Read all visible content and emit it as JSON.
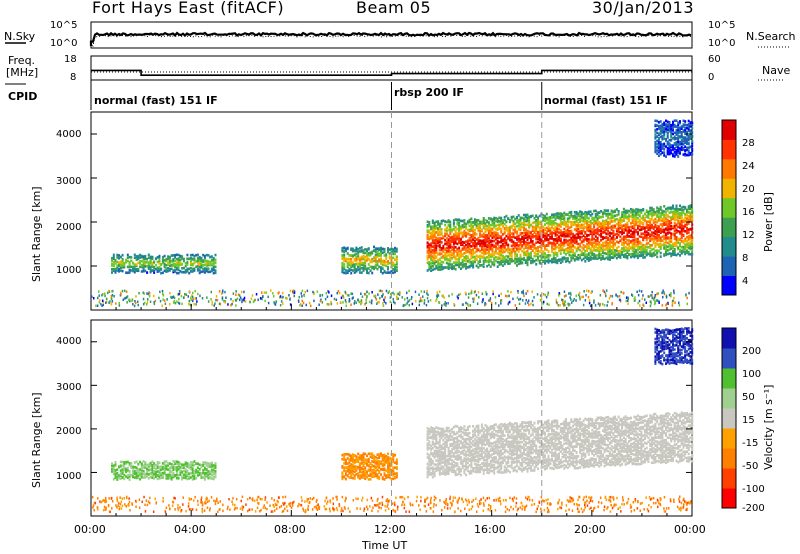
{
  "header": {
    "station": "Fort Hays East (fitACF)",
    "beam": "Beam 05",
    "date": "30/Jan/2013"
  },
  "noise_panel": {
    "left_label": "N.Sky",
    "left_ticks": [
      "10^5",
      "10^0"
    ],
    "right_label": "N.Search",
    "right_ticks": [
      "10^5",
      "10^0"
    ]
  },
  "freq_panel": {
    "left_label_1": "Freq.",
    "left_label_2": "[MHz]",
    "left_ticks": [
      "18",
      "8"
    ],
    "right_label": "Nave",
    "right_ticks": [
      "60",
      "0"
    ],
    "cpid_label": "CPID"
  },
  "cpid_segments": [
    {
      "label": "normal (fast) 151 IF",
      "start_hour": 0
    },
    {
      "label": "rbsp 200 IF",
      "start_hour": 12
    },
    {
      "label": "normal (fast) 151 IF",
      "start_hour": 18
    }
  ],
  "x_axis": {
    "label": "Time UT",
    "ticks": [
      "00:00",
      "04:00",
      "08:00",
      "12:00",
      "16:00",
      "20:00",
      "00:00"
    ]
  },
  "power_panel": {
    "ylabel": "Slant Range [km]",
    "y_ticks": [
      "4000",
      "3000",
      "2000",
      "1000"
    ],
    "colorbar_label": "Power [dB]",
    "colorbar_ticks": [
      "28",
      "24",
      "20",
      "16",
      "12",
      "8",
      "4"
    ]
  },
  "velocity_panel": {
    "ylabel": "Slant Range [km]",
    "y_ticks": [
      "4000",
      "3000",
      "2000",
      "1000"
    ],
    "colorbar_label": "Velocity [m s⁻¹]",
    "colorbar_ticks": [
      "200",
      "100",
      "50",
      "15",
      "-15",
      "-50",
      "-100",
      "-200"
    ]
  },
  "chart_data": {
    "type": "heatmap",
    "x_range_hours": [
      0,
      24
    ],
    "y_range_km": [
      0,
      4500
    ],
    "cpid_boundaries_hours": [
      12,
      18
    ],
    "frequency_mhz": [
      {
        "start_hour": 0,
        "end_hour": 2,
        "value": 12
      },
      {
        "start_hour": 2,
        "end_hour": 12,
        "value": 10
      },
      {
        "start_hour": 12,
        "end_hour": 18,
        "value": 10.7
      },
      {
        "start_hour": 18,
        "end_hour": 24,
        "value": 12
      }
    ],
    "echo_regions": [
      {
        "name": "A",
        "start_hour": 0.8,
        "end_hour": 5.0,
        "range_km": [
          850,
          1250
        ],
        "power_db": 15,
        "velocity": 50
      },
      {
        "name": "B",
        "start_hour": 10.0,
        "end_hour": 12.2,
        "range_km": [
          850,
          1400
        ],
        "power_db": 18,
        "velocity": -50
      },
      {
        "name": "C",
        "start_hour": 13.4,
        "end_hour": 24.0,
        "range_km": [
          900,
          2000
        ],
        "power_db": 26,
        "velocity": 0
      },
      {
        "name": "D",
        "start_hour": 22.5,
        "end_hour": 24.0,
        "range_km": [
          3500,
          4300
        ],
        "power_db": 6,
        "velocity": 200
      }
    ],
    "power_colorbar": {
      "min": 0,
      "max": 30,
      "colors": [
        "#0000ff",
        "#1e64b4",
        "#228b8b",
        "#3ca050",
        "#6ec828",
        "#f0b400",
        "#ff7800",
        "#ff3200",
        "#e00000"
      ]
    },
    "velocity_colorbar": {
      "levels": [
        -250,
        -200,
        -100,
        -50,
        -15,
        15,
        50,
        100,
        200,
        250
      ],
      "colors": [
        "#ff0000",
        "#ff4000",
        "#ff8000",
        "#ffa000",
        "#c8c8c0",
        "#9fd090",
        "#50c030",
        "#3050c0",
        "#1010b0"
      ]
    }
  }
}
